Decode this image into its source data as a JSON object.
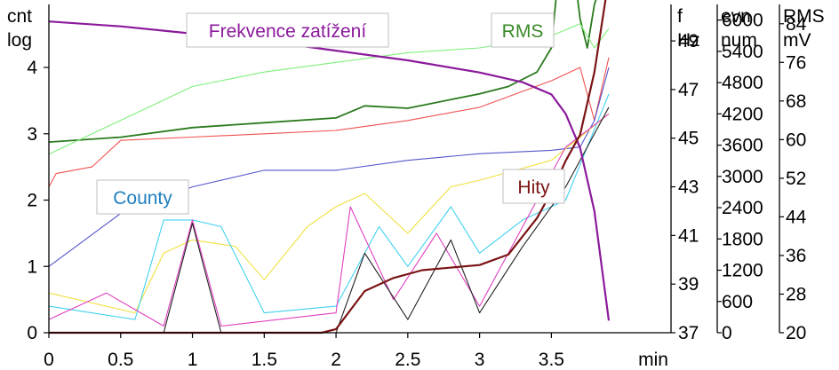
{
  "chart_data": {
    "type": "line",
    "xlabel": "min",
    "x_ticks": [
      "0",
      "0.5",
      "1",
      "1.5",
      "2",
      "2.5",
      "3",
      "3.5"
    ],
    "xlim": [
      0,
      3.9
    ],
    "axes": {
      "left": {
        "label_lines": [
          "cnt",
          "log"
        ],
        "ticks": [
          "0",
          "1",
          "2",
          "3",
          "4"
        ],
        "range": [
          0,
          4.95
        ]
      },
      "frequency": {
        "label_lines": [
          "f",
          "Hz"
        ],
        "ticks": [
          "37",
          "39",
          "41",
          "43",
          "45",
          "47",
          "49"
        ],
        "range": [
          37,
          50.5
        ]
      },
      "events": {
        "label_lines": [
          "evn",
          "num"
        ],
        "ticks": [
          "0",
          "600",
          "1200",
          "1800",
          "2400",
          "3000",
          "3600",
          "4200",
          "4800",
          "5400",
          "6000"
        ],
        "range": [
          0,
          6300
        ]
      },
      "rms": {
        "label_lines": [
          "RMS",
          "mV"
        ],
        "ticks": [
          "20",
          "28",
          "36",
          "44",
          "52",
          "60",
          "68",
          "76",
          "84"
        ],
        "range": [
          20,
          88
        ]
      }
    },
    "legend_labels": [
      {
        "text": "Frekvence zatížení",
        "color": "#8b1a9b"
      },
      {
        "text": "RMS",
        "color": "#3a8a2a"
      },
      {
        "text": "County",
        "color": "#1f7fc0"
      },
      {
        "text": "Hity",
        "color": "#7a1414"
      }
    ],
    "series": [
      {
        "name": "Frekvence zatížení",
        "axis": "frequency",
        "color": "#8b1a9b",
        "x": [
          0,
          0.5,
          1,
          1.5,
          2,
          2.5,
          3,
          3.3,
          3.5,
          3.6,
          3.7,
          3.8,
          3.9
        ],
        "y": [
          49.8,
          49.6,
          49.3,
          49.0,
          48.6,
          48.2,
          47.7,
          47.3,
          46.8,
          46.0,
          44.6,
          42.0,
          37.5
        ]
      },
      {
        "name": "Hity",
        "axis": "events",
        "color": "#7a1414",
        "x": [
          0,
          1.0,
          1.9,
          2.0,
          2.2,
          2.4,
          2.6,
          3.0,
          3.2,
          3.4,
          3.5,
          3.6,
          3.7,
          3.8,
          3.9
        ],
        "y": [
          0,
          0,
          0,
          70,
          800,
          1050,
          1200,
          1300,
          1500,
          2200,
          2700,
          3300,
          3800,
          5000,
          6800
        ]
      },
      {
        "color": "#2b7a1e",
        "axis": "rms",
        "x": [
          0,
          0.5,
          1,
          1.5,
          2,
          2.2,
          2.5,
          3,
          3.2,
          3.4,
          3.5,
          3.55,
          3.6,
          3.65,
          3.7,
          3.75,
          3.8,
          3.9
        ],
        "y": [
          59.5,
          60.5,
          62.5,
          63.5,
          64.5,
          67,
          66.5,
          69.5,
          71,
          74,
          79,
          95,
          93,
          97,
          85,
          79,
          88,
          97
        ]
      },
      {
        "color": "#7ff07a",
        "axis": "rms",
        "x": [
          0,
          0.5,
          1,
          1.5,
          2,
          2.5,
          3,
          3.5,
          3.7,
          3.8,
          3.9
        ],
        "y": [
          57,
          64,
          71,
          74,
          76,
          78,
          79,
          81.5,
          84,
          79,
          83
        ]
      },
      {
        "color": "#f05050",
        "axis": "left",
        "x": [
          0,
          0.05,
          0.3,
          0.5,
          1,
          1.5,
          2,
          2.5,
          3,
          3.5,
          3.7,
          3.8,
          3.9
        ],
        "y": [
          2.2,
          2.4,
          2.5,
          2.9,
          2.95,
          3.0,
          3.05,
          3.2,
          3.4,
          3.8,
          4.0,
          3.2,
          4.15
        ]
      },
      {
        "color": "#5555cc",
        "axis": "left",
        "x": [
          0,
          0.5,
          1,
          1.5,
          2,
          2.5,
          3,
          3.5,
          3.7,
          3.8,
          3.9
        ],
        "y": [
          1.0,
          1.8,
          2.2,
          2.45,
          2.45,
          2.6,
          2.7,
          2.75,
          2.8,
          3.2,
          4.0
        ]
      },
      {
        "color": "#f0e040",
        "axis": "left",
        "x": [
          0,
          0.6,
          0.8,
          1.0,
          1.3,
          1.5,
          1.8,
          2.0,
          2.2,
          2.5,
          2.8,
          3.0,
          3.5,
          3.9
        ],
        "y": [
          0.6,
          0.3,
          1.2,
          1.4,
          1.3,
          0.8,
          1.6,
          1.9,
          2.1,
          1.5,
          2.2,
          2.3,
          2.6,
          3.3
        ]
      },
      {
        "color": "#40d0f0",
        "axis": "left",
        "x": [
          0,
          0.6,
          0.8,
          1.0,
          1.2,
          1.5,
          2.0,
          2.3,
          2.5,
          2.8,
          3.0,
          3.3,
          3.6,
          3.9
        ],
        "y": [
          0.4,
          0.2,
          1.7,
          1.7,
          1.6,
          0.3,
          0.4,
          1.6,
          1.0,
          1.9,
          1.2,
          1.7,
          2.0,
          3.6
        ]
      },
      {
        "color": "#e040c0",
        "axis": "left",
        "x": [
          0,
          0.4,
          0.8,
          1.0,
          1.2,
          2.0,
          2.1,
          2.4,
          2.7,
          3.0,
          3.3,
          3.6,
          3.9
        ],
        "y": [
          0.2,
          0.6,
          0.1,
          1.7,
          0.1,
          0.3,
          1.9,
          0.5,
          1.5,
          0.4,
          1.6,
          2.8,
          3.3
        ]
      },
      {
        "color": "#222222",
        "axis": "left",
        "x": [
          0,
          0.8,
          1.0,
          1.2,
          2.0,
          2.2,
          2.5,
          2.8,
          3.0,
          3.3,
          3.6,
          3.9
        ],
        "y": [
          0.0,
          0.0,
          1.65,
          0.0,
          0.0,
          1.2,
          0.2,
          1.4,
          0.3,
          1.3,
          2.2,
          3.4
        ]
      }
    ]
  }
}
